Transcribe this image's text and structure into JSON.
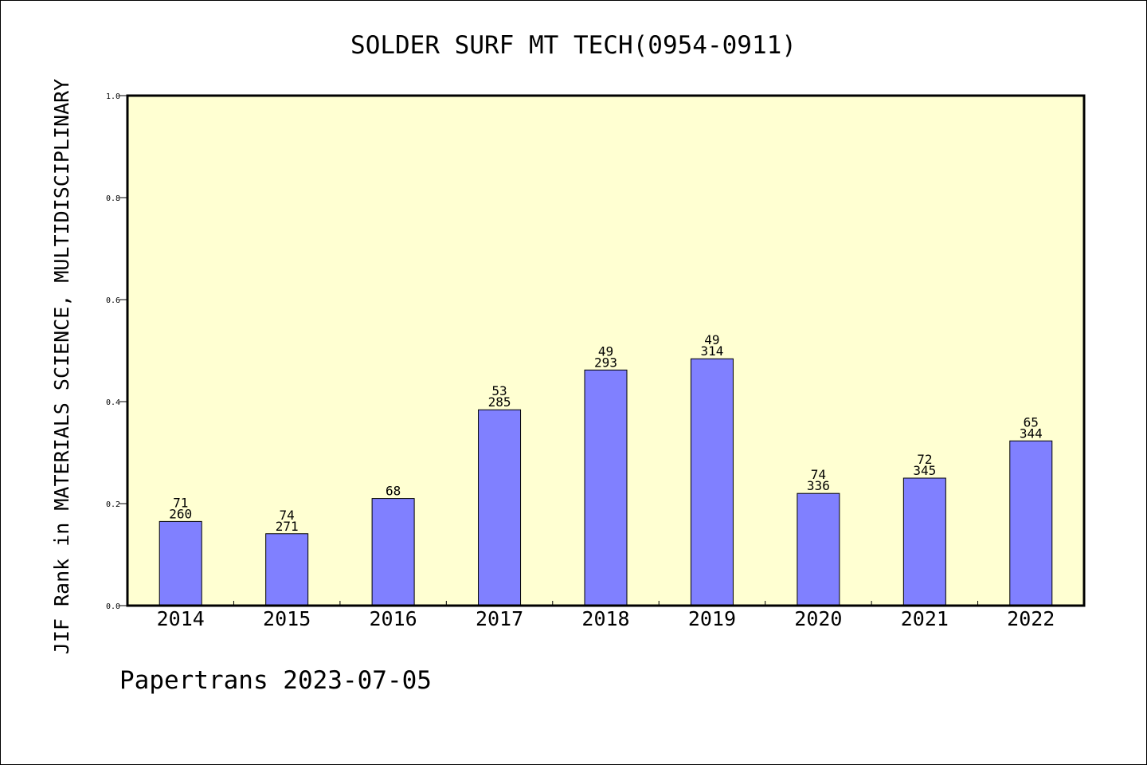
{
  "chart_data": {
    "type": "bar",
    "title": "SOLDER SURF MT TECH(0954-0911)",
    "ylabel": "JIF Rank in MATERIALS SCIENCE, MULTIDISCIPLINARY",
    "xlabel": "",
    "ylim": [
      0,
      1.0
    ],
    "yticks": [
      "0.0",
      "0.2",
      "0.4",
      "0.6",
      "0.8",
      "1.0"
    ],
    "grid": false,
    "colors": {
      "plot_bg": "#ffffd2",
      "bar": "#8080ff"
    },
    "categories": [
      "2014",
      "2015",
      "2016",
      "2017",
      "2018",
      "2019",
      "2020",
      "2021",
      "2022"
    ],
    "values": [
      0.165,
      0.141,
      0.21,
      0.384,
      0.462,
      0.484,
      0.22,
      0.25,
      0.323
    ],
    "labels": [
      [
        "71",
        "260"
      ],
      [
        "74",
        "271"
      ],
      [
        "68"
      ],
      [
        "53",
        "285"
      ],
      [
        "49",
        "293"
      ],
      [
        "49",
        "314"
      ],
      [
        "74",
        "336"
      ],
      [
        "72",
        "345"
      ],
      [
        "65",
        "344"
      ]
    ]
  },
  "footer": {
    "text": "Papertrans 2023-07-05"
  }
}
